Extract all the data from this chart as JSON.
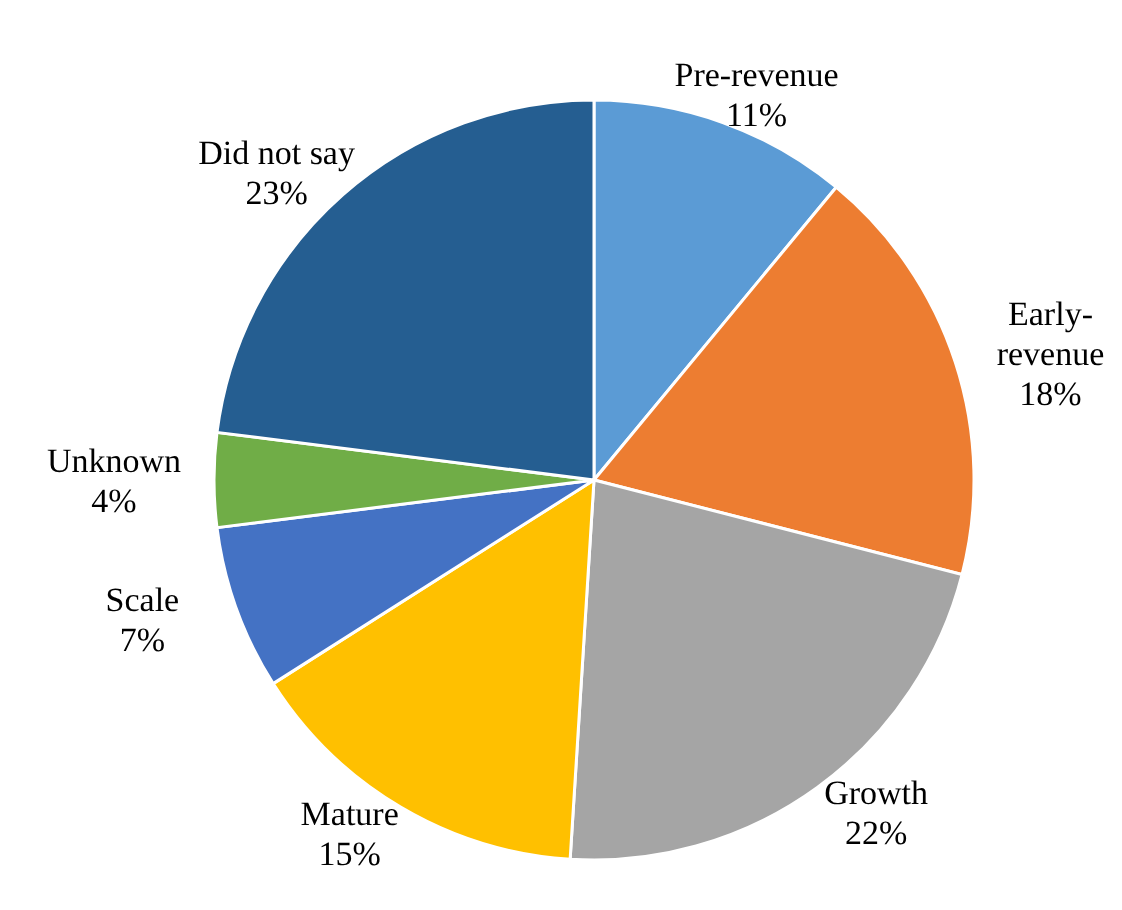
{
  "chart_data": {
    "type": "pie",
    "categories": [
      "Pre-revenue",
      "Early-revenue",
      "Growth",
      "Mature",
      "Scale",
      "Unknown",
      "Did not say"
    ],
    "values": [
      11,
      18,
      22,
      15,
      7,
      4,
      23
    ],
    "value_labels": [
      "11%",
      "18%",
      "22%",
      "15%",
      "7%",
      "4%",
      "23%"
    ],
    "colors": [
      "#5b9bd5",
      "#ed7d31",
      "#a5a5a5",
      "#ffc000",
      "#4472c4",
      "#70ad47",
      "#255e91"
    ]
  }
}
